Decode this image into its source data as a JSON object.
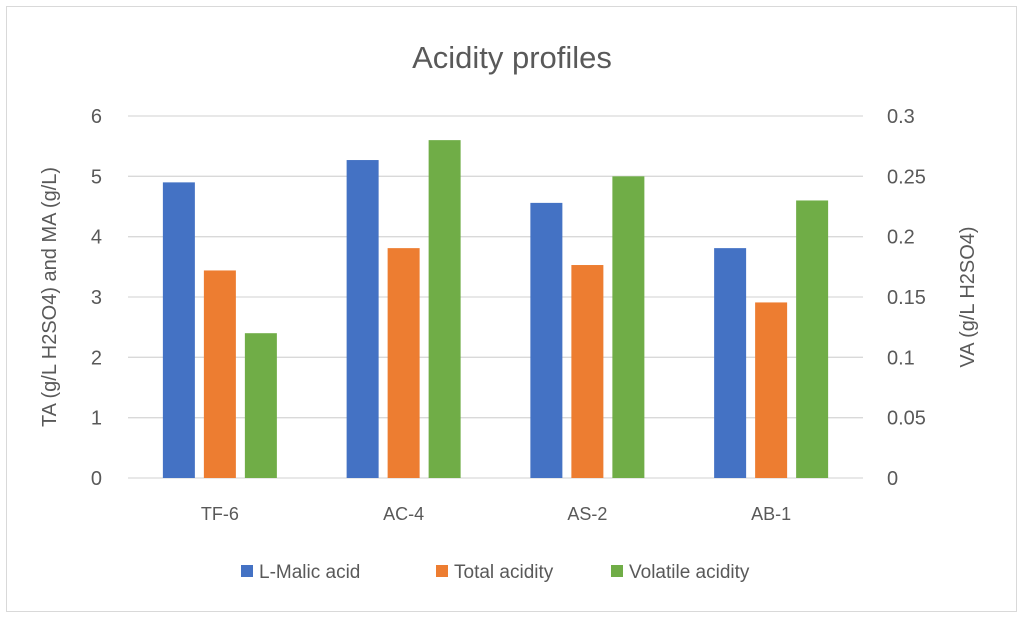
{
  "chart_data": {
    "type": "bar",
    "title": "Acidity profiles",
    "categories": [
      "TF-6",
      "AC-4",
      "AS-2",
      "AB-1"
    ],
    "ylabel": "TA (g/L H2SO4) and MA (g/L)",
    "y2label": "VA (g/L H2SO4)",
    "ylim": [
      0,
      6
    ],
    "y2lim": [
      0,
      0.3
    ],
    "yticks": [
      "0",
      "1",
      "2",
      "3",
      "4",
      "5",
      "6"
    ],
    "y2ticks": [
      "0",
      "0.05",
      "0.1",
      "0.15",
      "0.2",
      "0.25",
      "0.3"
    ],
    "grid": true,
    "legend": "bottom",
    "series": [
      {
        "name": "L-Malic acid",
        "axis": "left",
        "color": "#4472c4",
        "values": [
          4.9,
          5.27,
          4.56,
          3.81
        ]
      },
      {
        "name": "Total acidity",
        "axis": "left",
        "color": "#ed7d31",
        "values": [
          3.44,
          3.81,
          3.53,
          2.91
        ]
      },
      {
        "name": "Volatile acidity",
        "axis": "right",
        "color": "#70ad47",
        "values": [
          0.12,
          0.28,
          0.25,
          0.23
        ]
      }
    ]
  }
}
